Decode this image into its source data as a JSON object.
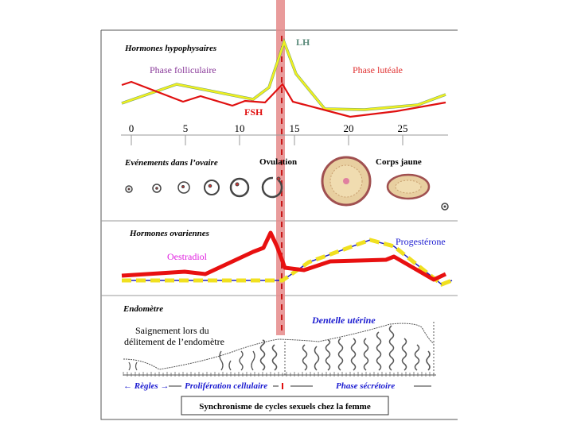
{
  "title": "Synchronisme de cycles sexuels chez la femme",
  "sections": {
    "pituitary": "Hormones hypophysaires",
    "ovary": "Evénements dans l’ovaire",
    "ovarian_hormones": "Hormones ovariennes",
    "endometrium": "Endomètre"
  },
  "labels": {
    "follicular_phase": "Phase folliculaire",
    "luteal_phase": "Phase lutéale",
    "lh": "LH",
    "fsh": "FSH",
    "ovulation": "Ovulation",
    "corpus_luteum": "Corps jaune",
    "oestradiol": "Oestradiol",
    "progesterone": "Progestérone",
    "bleeding_1": "Saignement lors du",
    "bleeding_2": "délitement de l’endomètre",
    "uterine_lace": "Dentelle utérine",
    "menses": "← Règles →",
    "proliferation": "Prolifération cellulaire",
    "secretory": "Phase sécrétoire"
  },
  "axis": {
    "ticks": [
      "0",
      "5",
      "10",
      "15",
      "20",
      "25"
    ],
    "unit": "days"
  },
  "colors": {
    "lh": "#f0f020",
    "fsh": "#e01010",
    "band": "#e58a8a",
    "purple": "#8a3a9a",
    "blue": "#1a1ad0",
    "magenta": "#e020e0"
  }
}
